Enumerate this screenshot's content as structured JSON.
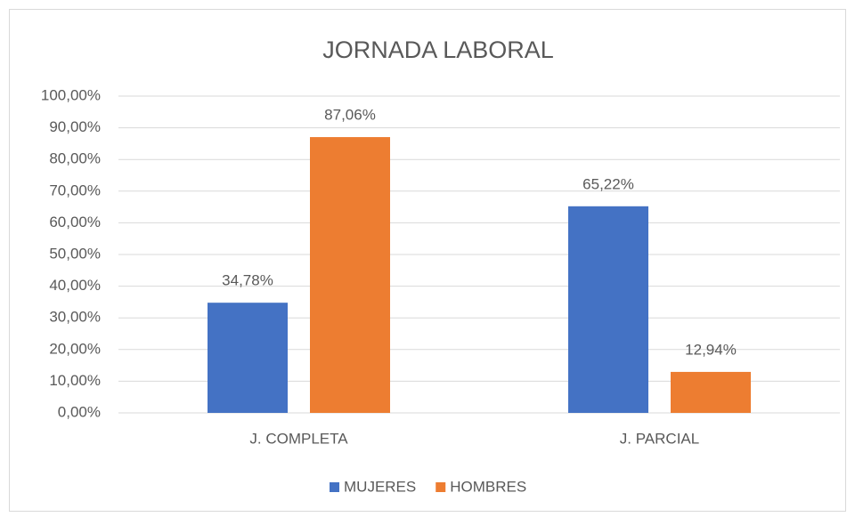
{
  "chart_data": {
    "type": "bar",
    "title": "JORNADA LABORAL",
    "categories": [
      "J. COMPLETA",
      "J. PARCIAL"
    ],
    "series": [
      {
        "name": "MUJERES",
        "color": "#4472c4",
        "values": [
          34.78,
          65.22
        ],
        "value_labels": [
          "34,78%",
          "65,22%"
        ]
      },
      {
        "name": "HOMBRES",
        "color": "#ed7d31",
        "values": [
          87.06,
          12.94
        ],
        "value_labels": [
          "87,06%",
          "12,94%"
        ]
      }
    ],
    "ylim": [
      0,
      100
    ],
    "yticks": [
      {
        "value": 0,
        "label": "0,00%"
      },
      {
        "value": 10,
        "label": "10,00%"
      },
      {
        "value": 20,
        "label": "20,00%"
      },
      {
        "value": 30,
        "label": "30,00%"
      },
      {
        "value": 40,
        "label": "40,00%"
      },
      {
        "value": 50,
        "label": "50,00%"
      },
      {
        "value": 60,
        "label": "60,00%"
      },
      {
        "value": 70,
        "label": "70,00%"
      },
      {
        "value": 80,
        "label": "80,00%"
      },
      {
        "value": 90,
        "label": "90,00%"
      },
      {
        "value": 100,
        "label": "100,00%"
      }
    ],
    "grid": true,
    "legend": "bottom"
  }
}
